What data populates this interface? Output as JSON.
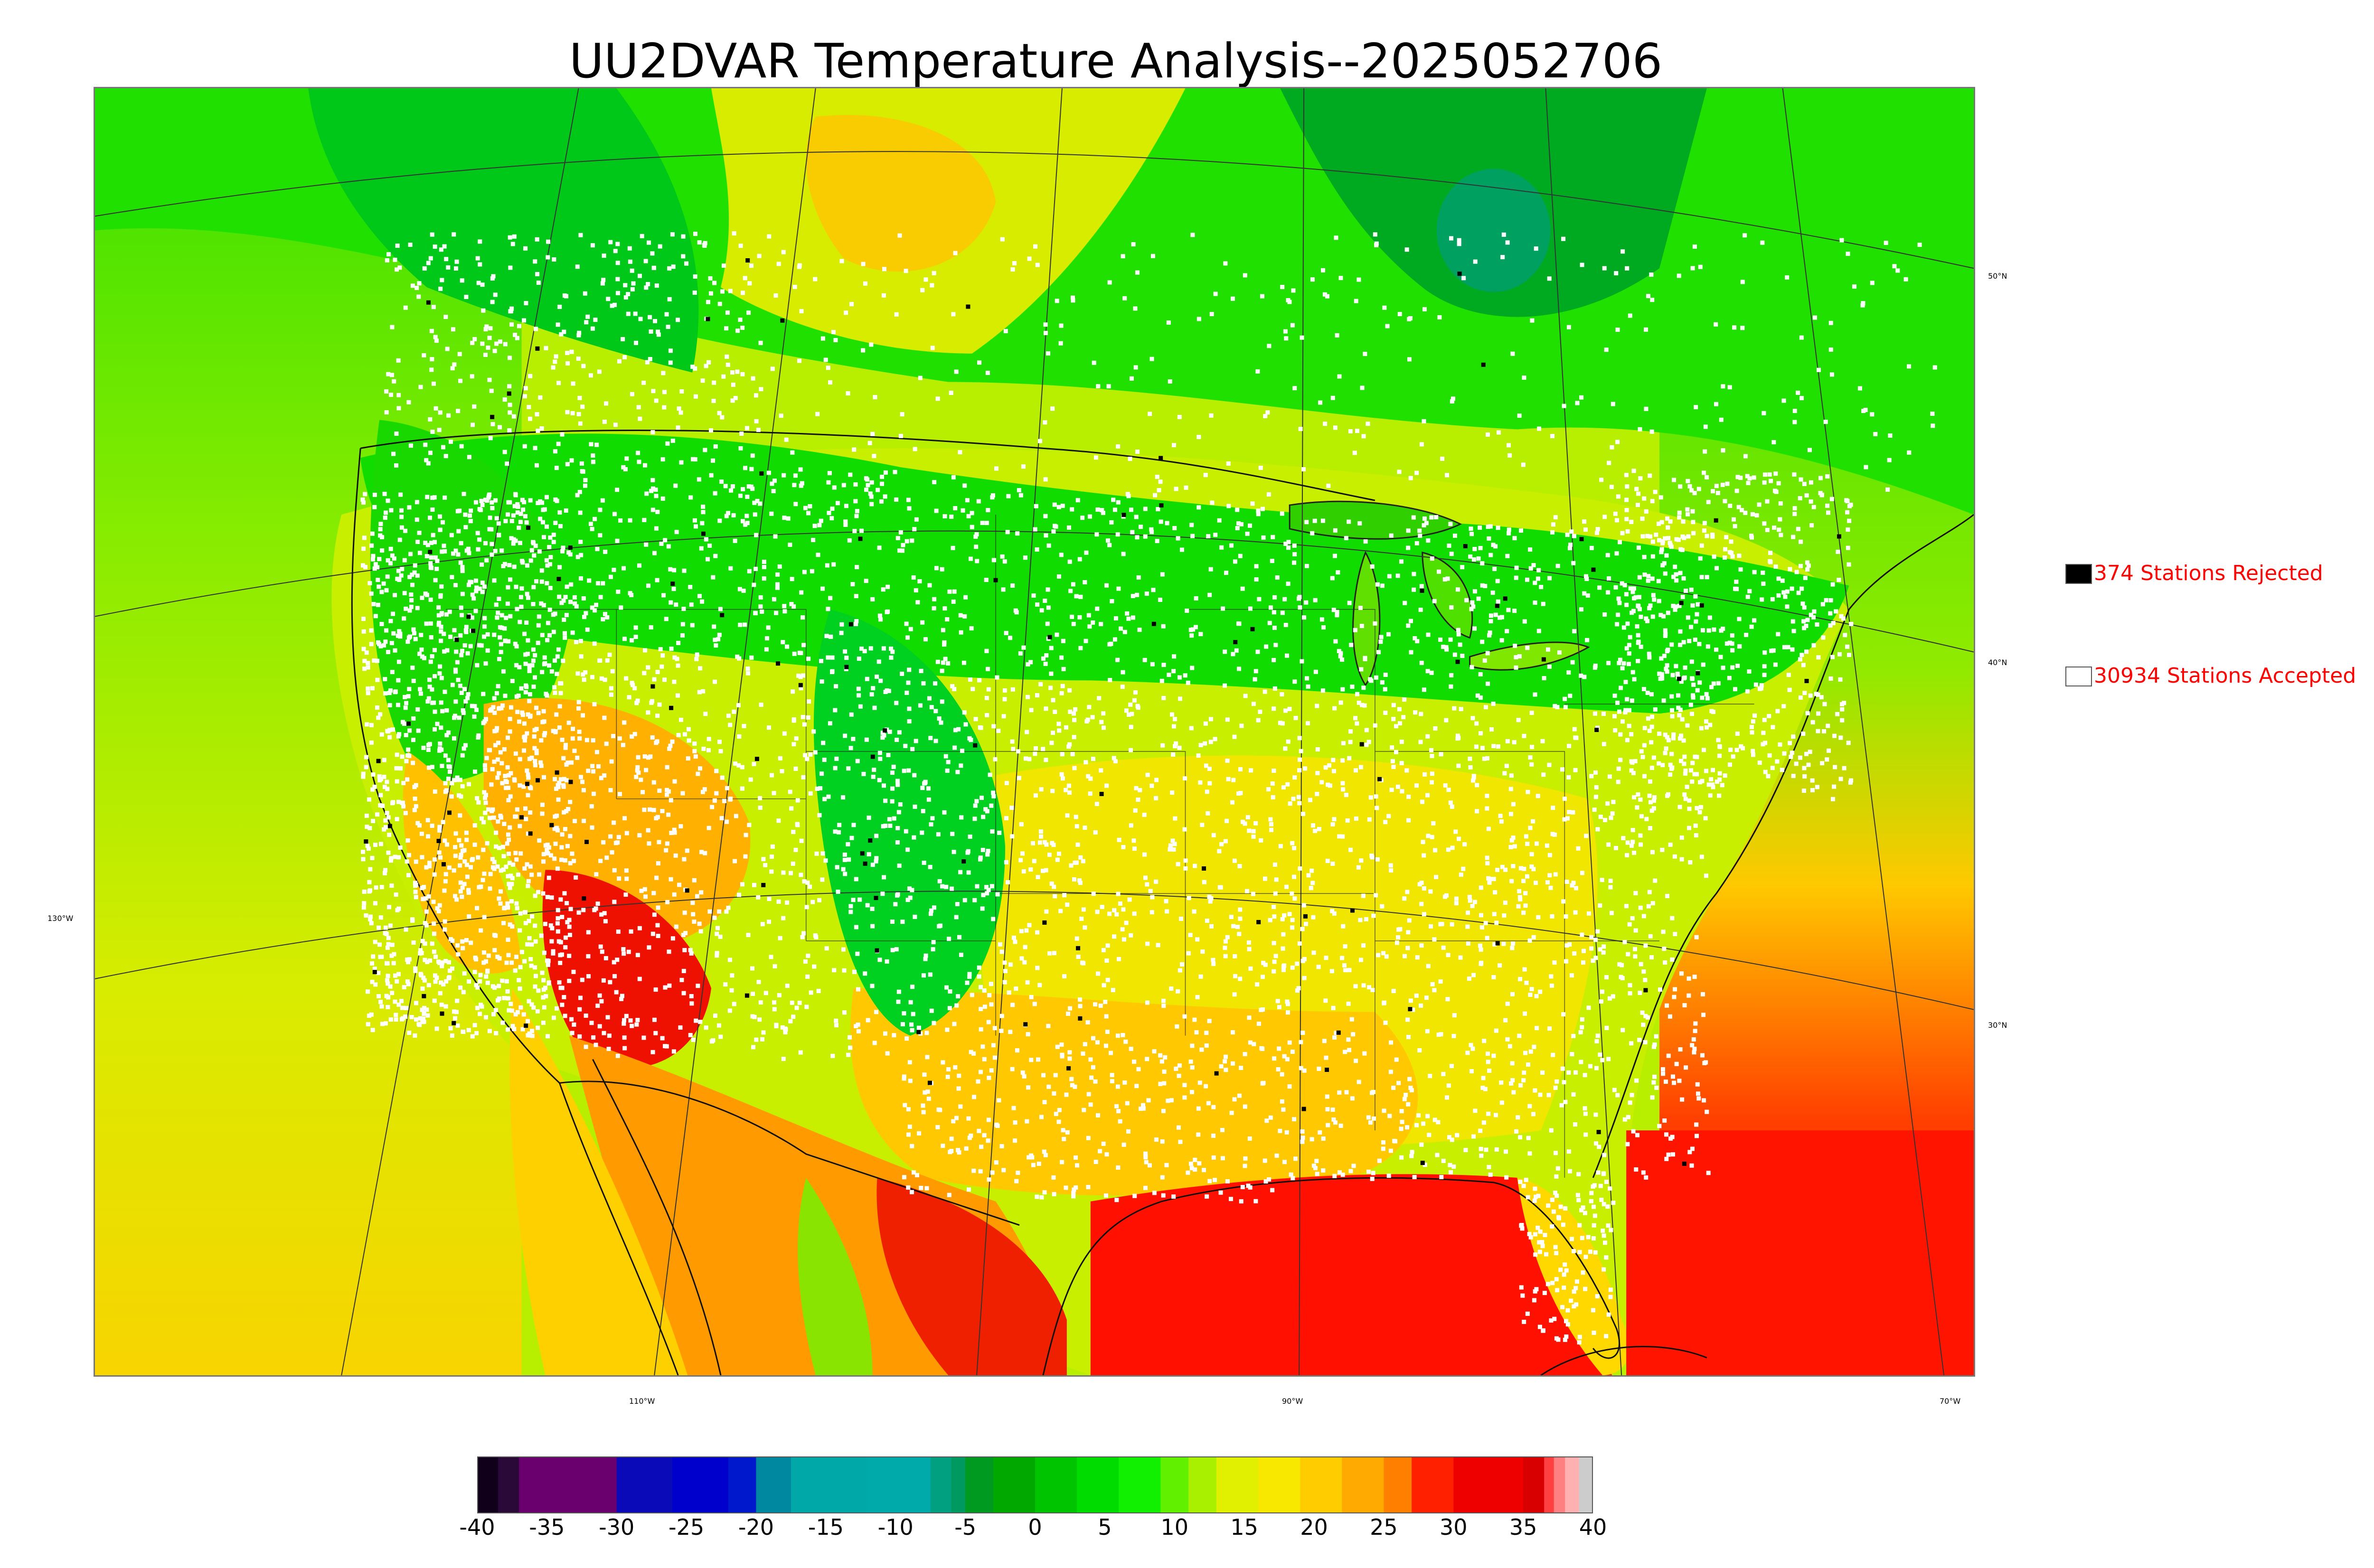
{
  "title": "UU2DVAR Temperature Analysis--2025052706",
  "legend": {
    "rejected": {
      "label": "374 Stations Rejected",
      "color": "#000000"
    },
    "accepted": {
      "label": "30934 Stations Accepted",
      "color": "#ffffff"
    }
  },
  "graticule": {
    "lat_labels": [
      "50°N",
      "40°N",
      "30°N"
    ],
    "lon_labels": [
      "130°W",
      "110°W",
      "90°W",
      "70°W"
    ]
  },
  "colorbar": {
    "ticks": [
      "-40",
      "-35",
      "-30",
      "-25",
      "-20",
      "-15",
      "-10",
      "-5",
      "0",
      "5",
      "10",
      "15",
      "20",
      "25",
      "30",
      "35",
      "40"
    ],
    "segments": [
      {
        "from": -40,
        "to": -38.5,
        "color": "#10001a"
      },
      {
        "from": -38.5,
        "to": -37,
        "color": "#2a0838"
      },
      {
        "from": -37,
        "to": -30,
        "color": "#6a006e"
      },
      {
        "from": -30,
        "to": -26,
        "color": "#0a0ab8"
      },
      {
        "from": -26,
        "to": -22,
        "color": "#0000cc"
      },
      {
        "from": -22,
        "to": -20,
        "color": "#0018cc"
      },
      {
        "from": -20,
        "to": -17.5,
        "color": "#0088a0"
      },
      {
        "from": -17.5,
        "to": -12,
        "color": "#00a8a8"
      },
      {
        "from": -12,
        "to": -7.5,
        "color": "#00aaaa"
      },
      {
        "from": -7.5,
        "to": -6,
        "color": "#00a080"
      },
      {
        "from": -6,
        "to": -5,
        "color": "#009a60"
      },
      {
        "from": -5,
        "to": -3,
        "color": "#009a20"
      },
      {
        "from": -3,
        "to": 0,
        "color": "#00a800"
      },
      {
        "from": 0,
        "to": 3,
        "color": "#00c400"
      },
      {
        "from": 3,
        "to": 6,
        "color": "#00dc00"
      },
      {
        "from": 6,
        "to": 9,
        "color": "#10f000"
      },
      {
        "from": 9,
        "to": 11,
        "color": "#60f000"
      },
      {
        "from": 11,
        "to": 13,
        "color": "#a8f000"
      },
      {
        "from": 13,
        "to": 16,
        "color": "#e0f000"
      },
      {
        "from": 16,
        "to": 19,
        "color": "#f8e800"
      },
      {
        "from": 19,
        "to": 22,
        "color": "#ffcc00"
      },
      {
        "from": 22,
        "to": 25,
        "color": "#ffaa00"
      },
      {
        "from": 25,
        "to": 27,
        "color": "#ff8000"
      },
      {
        "from": 27,
        "to": 30,
        "color": "#ff2000"
      },
      {
        "from": 30,
        "to": 35,
        "color": "#ee0000"
      },
      {
        "from": 35,
        "to": 36.5,
        "color": "#d80000"
      },
      {
        "from": 36.5,
        "to": 37.2,
        "color": "#ff4040"
      },
      {
        "from": 37.2,
        "to": 38,
        "color": "#ff8080"
      },
      {
        "from": 38,
        "to": 39,
        "color": "#ffb0b0"
      },
      {
        "from": 39,
        "to": 40,
        "color": "#cccccc"
      }
    ]
  }
}
